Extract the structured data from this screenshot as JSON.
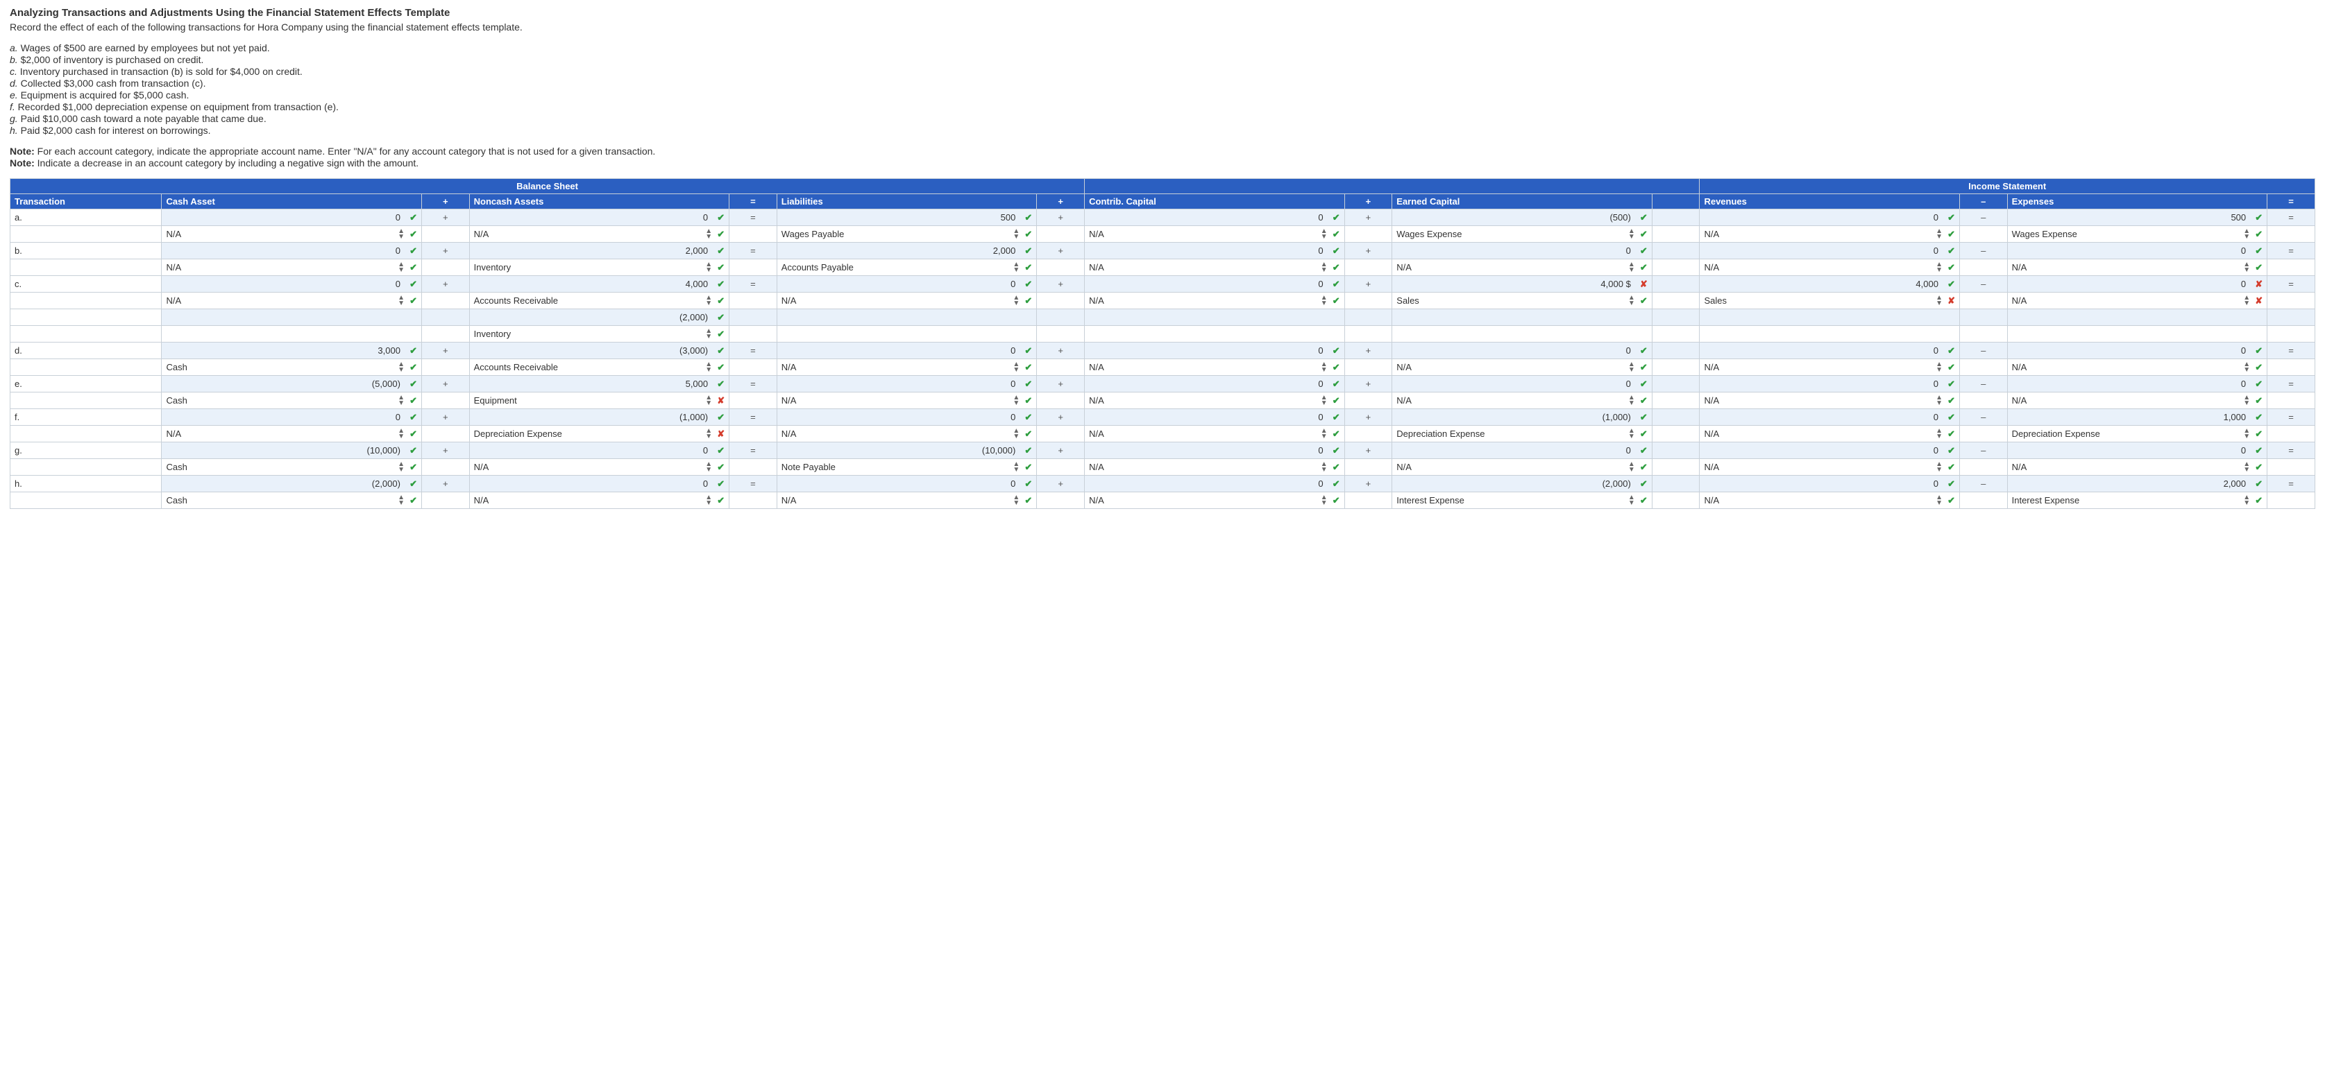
{
  "title": "Analyzing Transactions and Adjustments Using the Financial Statement Effects Template",
  "instruction": "Record the effect of each of the following transactions for Hora Company using the financial statement effects template.",
  "transactions_list": [
    {
      "label": "a.",
      "text": "Wages of $500 are earned by employees but not yet paid."
    },
    {
      "label": "b.",
      "text": "$2,000 of inventory is purchased on credit."
    },
    {
      "label": "c.",
      "text": "Inventory purchased in transaction (b) is sold for $4,000 on credit."
    },
    {
      "label": "d.",
      "text": "Collected $3,000 cash from transaction (c)."
    },
    {
      "label": "e.",
      "text": "Equipment is acquired for $5,000 cash."
    },
    {
      "label": "f.",
      "text": "Recorded $1,000 depreciation expense on equipment from transaction (e)."
    },
    {
      "label": "g.",
      "text": "Paid $10,000 cash toward a note payable that came due."
    },
    {
      "label": "h.",
      "text": "Paid $2,000 cash for interest on borrowings."
    }
  ],
  "notes": [
    {
      "bold": "Note:",
      "text": " For each account category, indicate the appropriate account name. Enter \"N/A\" for any account category that is not used for a given transaction."
    },
    {
      "bold": "Note:",
      "text": " Indicate a decrease in an account category by including a negative sign with the amount."
    }
  ],
  "groups": {
    "bs": "Balance Sheet",
    "is": "Income Statement"
  },
  "columns": {
    "tx": "Transaction",
    "cash": "Cash Asset",
    "noncash": "Noncash Assets",
    "liab": "Liabilities",
    "contrib": "Contrib. Capital",
    "earned": "Earned Capital",
    "rev": "Revenues",
    "exp": "Expenses"
  },
  "ops": {
    "plus": "+",
    "eq": "=",
    "minus": "–"
  },
  "rows": [
    {
      "tx": "a.",
      "vals": {
        "cash": {
          "v": "0",
          "m": "ok"
        },
        "noncash": {
          "v": "0",
          "m": "ok"
        },
        "liab": {
          "v": "500",
          "m": "ok"
        },
        "contrib": {
          "v": "0",
          "m": "ok"
        },
        "earned": {
          "v": "(500)",
          "m": "ok"
        },
        "rev": {
          "v": "0",
          "m": "ok"
        },
        "exp": {
          "v": "500",
          "m": "ok"
        }
      },
      "names": {
        "cash": {
          "v": "N/A",
          "m": "ok"
        },
        "noncash": {
          "v": "N/A",
          "m": "ok"
        },
        "liab": {
          "v": "Wages Payable",
          "m": "ok"
        },
        "contrib": {
          "v": "N/A",
          "m": "ok"
        },
        "earned": {
          "v": "Wages Expense",
          "m": "ok"
        },
        "rev": {
          "v": "N/A",
          "m": "ok",
          "pre": "bad"
        },
        "exp": {
          "v": "Wages Expense",
          "m": "ok"
        }
      }
    },
    {
      "tx": "b.",
      "vals": {
        "cash": {
          "v": "0",
          "m": "ok"
        },
        "noncash": {
          "v": "2,000",
          "m": "ok"
        },
        "liab": {
          "v": "2,000",
          "m": "ok"
        },
        "contrib": {
          "v": "0",
          "m": "ok"
        },
        "earned": {
          "v": "0",
          "m": "ok"
        },
        "rev": {
          "v": "0",
          "m": "ok"
        },
        "exp": {
          "v": "0",
          "m": "ok"
        }
      },
      "names": {
        "cash": {
          "v": "N/A",
          "m": "ok"
        },
        "noncash": {
          "v": "Inventory",
          "m": "ok"
        },
        "liab": {
          "v": "Accounts Payable",
          "m": "ok"
        },
        "contrib": {
          "v": "N/A",
          "m": "ok"
        },
        "earned": {
          "v": "N/A",
          "m": "ok"
        },
        "rev": {
          "v": "N/A",
          "m": "ok",
          "pre": "bad"
        },
        "exp": {
          "v": "N/A",
          "m": "ok"
        }
      }
    },
    {
      "tx": "c.",
      "vals": {
        "cash": {
          "v": "0",
          "m": "ok"
        },
        "noncash": {
          "v": "4,000",
          "m": "ok"
        },
        "liab": {
          "v": "0",
          "m": "ok"
        },
        "contrib": {
          "v": "0",
          "m": "ok"
        },
        "earned": {
          "v": "4,000",
          "m": "bad",
          "suffix": "$"
        },
        "rev": {
          "v": "4,000",
          "m": "ok"
        },
        "exp": {
          "v": "0",
          "m": "bad"
        }
      },
      "names": {
        "cash": {
          "v": "N/A",
          "m": "ok"
        },
        "noncash": {
          "v": "Accounts Receivable",
          "m": "ok"
        },
        "liab": {
          "v": "N/A",
          "m": "ok"
        },
        "contrib": {
          "v": "N/A",
          "m": "ok"
        },
        "earned": {
          "v": "Sales",
          "m": "ok"
        },
        "rev": {
          "v": "Sales",
          "m": "bad",
          "pre": "bad"
        },
        "exp": {
          "v": "N/A",
          "m": "bad"
        }
      },
      "extra": [
        {
          "vals": {
            "noncash": {
              "v": "(2,000)",
              "m": "ok"
            }
          }
        },
        {
          "names": {
            "noncash": {
              "v": "Inventory",
              "m": "ok"
            }
          }
        }
      ]
    },
    {
      "tx": "d.",
      "vals": {
        "cash": {
          "v": "3,000",
          "m": "ok"
        },
        "noncash": {
          "v": "(3,000)",
          "m": "ok"
        },
        "liab": {
          "v": "0",
          "m": "ok"
        },
        "contrib": {
          "v": "0",
          "m": "ok"
        },
        "earned": {
          "v": "0",
          "m": "ok"
        },
        "rev": {
          "v": "0",
          "m": "ok"
        },
        "exp": {
          "v": "0",
          "m": "ok"
        }
      },
      "names": {
        "cash": {
          "v": "Cash",
          "m": "ok"
        },
        "noncash": {
          "v": "Accounts Receivable",
          "m": "ok"
        },
        "liab": {
          "v": "N/A",
          "m": "ok"
        },
        "contrib": {
          "v": "N/A",
          "m": "ok"
        },
        "earned": {
          "v": "N/A",
          "m": "ok"
        },
        "rev": {
          "v": "N/A",
          "m": "ok",
          "pre": "bad"
        },
        "exp": {
          "v": "N/A",
          "m": "ok"
        }
      }
    },
    {
      "tx": "e.",
      "vals": {
        "cash": {
          "v": "(5,000)",
          "m": "ok"
        },
        "noncash": {
          "v": "5,000",
          "m": "ok"
        },
        "liab": {
          "v": "0",
          "m": "ok"
        },
        "contrib": {
          "v": "0",
          "m": "ok"
        },
        "earned": {
          "v": "0",
          "m": "ok"
        },
        "rev": {
          "v": "0",
          "m": "ok"
        },
        "exp": {
          "v": "0",
          "m": "ok"
        }
      },
      "names": {
        "cash": {
          "v": "Cash",
          "m": "ok"
        },
        "noncash": {
          "v": "Equipment",
          "m": "bad"
        },
        "liab": {
          "v": "N/A",
          "m": "ok"
        },
        "contrib": {
          "v": "N/A",
          "m": "ok"
        },
        "earned": {
          "v": "N/A",
          "m": "ok"
        },
        "rev": {
          "v": "N/A",
          "m": "ok",
          "pre": "bad"
        },
        "exp": {
          "v": "N/A",
          "m": "ok"
        }
      }
    },
    {
      "tx": "f.",
      "vals": {
        "cash": {
          "v": "0",
          "m": "ok"
        },
        "noncash": {
          "v": "(1,000)",
          "m": "ok"
        },
        "liab": {
          "v": "0",
          "m": "ok"
        },
        "contrib": {
          "v": "0",
          "m": "ok"
        },
        "earned": {
          "v": "(1,000)",
          "m": "ok"
        },
        "rev": {
          "v": "0",
          "m": "ok"
        },
        "exp": {
          "v": "1,000",
          "m": "ok"
        }
      },
      "names": {
        "cash": {
          "v": "N/A",
          "m": "ok"
        },
        "noncash": {
          "v": "Depreciation Expense",
          "m": "bad"
        },
        "liab": {
          "v": "N/A",
          "m": "ok"
        },
        "contrib": {
          "v": "N/A",
          "m": "ok"
        },
        "earned": {
          "v": "Depreciation Expense",
          "m": "ok"
        },
        "rev": {
          "v": "N/A",
          "m": "ok",
          "pre": "bad"
        },
        "exp": {
          "v": "Depreciation Expense",
          "m": "ok"
        }
      }
    },
    {
      "tx": "g.",
      "vals": {
        "cash": {
          "v": "(10,000)",
          "m": "ok"
        },
        "noncash": {
          "v": "0",
          "m": "ok"
        },
        "liab": {
          "v": "(10,000)",
          "m": "ok"
        },
        "contrib": {
          "v": "0",
          "m": "ok"
        },
        "earned": {
          "v": "0",
          "m": "ok"
        },
        "rev": {
          "v": "0",
          "m": "ok"
        },
        "exp": {
          "v": "0",
          "m": "ok"
        }
      },
      "names": {
        "cash": {
          "v": "Cash",
          "m": "ok"
        },
        "noncash": {
          "v": "N/A",
          "m": "ok"
        },
        "liab": {
          "v": "Note Payable",
          "m": "ok"
        },
        "contrib": {
          "v": "N/A",
          "m": "ok"
        },
        "earned": {
          "v": "N/A",
          "m": "ok"
        },
        "rev": {
          "v": "N/A",
          "m": "ok",
          "pre": "bad"
        },
        "exp": {
          "v": "N/A",
          "m": "ok"
        }
      }
    },
    {
      "tx": "h.",
      "vals": {
        "cash": {
          "v": "(2,000)",
          "m": "ok"
        },
        "noncash": {
          "v": "0",
          "m": "ok"
        },
        "liab": {
          "v": "0",
          "m": "ok"
        },
        "contrib": {
          "v": "0",
          "m": "ok"
        },
        "earned": {
          "v": "(2,000)",
          "m": "ok"
        },
        "rev": {
          "v": "0",
          "m": "ok"
        },
        "exp": {
          "v": "2,000",
          "m": "ok"
        }
      },
      "names": {
        "cash": {
          "v": "Cash",
          "m": "ok"
        },
        "noncash": {
          "v": "N/A",
          "m": "ok"
        },
        "liab": {
          "v": "N/A",
          "m": "ok"
        },
        "contrib": {
          "v": "N/A",
          "m": "ok"
        },
        "earned": {
          "v": "Interest Expense",
          "m": "ok"
        },
        "rev": {
          "v": "N/A",
          "m": "ok",
          "pre": "bad"
        },
        "exp": {
          "v": "Interest Expense",
          "m": "ok"
        }
      }
    }
  ],
  "colors": {
    "header_bg": "#2b5fc1",
    "valrow_bg": "#e9f1fa",
    "border": "#c8d0d8",
    "check": "#2e9e3f",
    "cross": "#d43c2c"
  }
}
